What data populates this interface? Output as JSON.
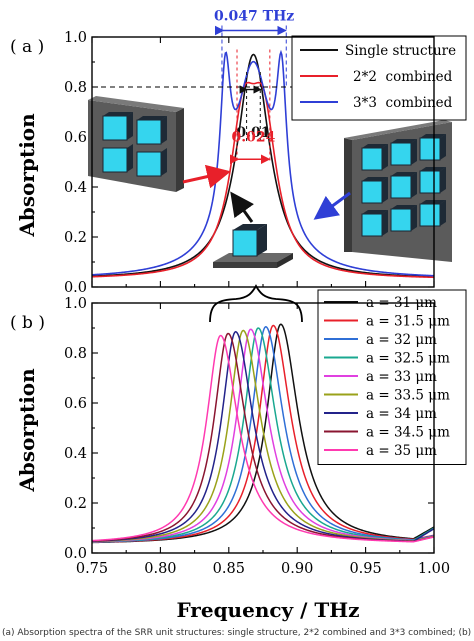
{
  "caption_fragment": "(a) Absorption spectra of the SRR unit structures: single structure, 2*2 combined and 3*3 combined; (b) spectra for different side lengths a",
  "colors": {
    "black": "#111111",
    "red": "#e8202a",
    "blue": "#2f3fd6",
    "cube_face": "#35d5ee",
    "plate": "#5a5a5a"
  },
  "chart_data": [
    {
      "panel_label": "( a )",
      "type": "line",
      "ylabel": "Absorption",
      "xlabel": "",
      "xlim": [
        0.75,
        1.0
      ],
      "ylim": [
        0.0,
        1.0
      ],
      "yticks": [
        0.0,
        0.2,
        0.4,
        0.6,
        0.8,
        1.0
      ],
      "ytick_labels": [
        "0.0",
        "0.2",
        "0.4",
        "0.6",
        "0.8",
        "1.0"
      ],
      "grid": false,
      "legend_position": "top-right",
      "reference_line_y": 0.8,
      "series": [
        {
          "name": "Single structure",
          "color": "#111111",
          "shape": "lorentz",
          "peaks": [
            {
              "x0": 0.868,
              "amp": 0.9,
              "w": 0.0145
            }
          ]
        },
        {
          "name": "2*2  combined",
          "color": "#e8202a",
          "shape": "lorentz",
          "peaks": [
            {
              "x0": 0.8605,
              "amp": 0.55,
              "w": 0.0118
            },
            {
              "x0": 0.8755,
              "amp": 0.55,
              "w": 0.0118
            }
          ]
        },
        {
          "name": "3*3  combined",
          "color": "#2f3fd6",
          "shape": "lorentz",
          "peaks": [
            {
              "x0": 0.8475,
              "amp": 0.56,
              "w": 0.0045
            },
            {
              "x0": 0.868,
              "amp": 0.82,
              "w": 0.0172
            },
            {
              "x0": 0.8885,
              "amp": 0.56,
              "w": 0.0045
            }
          ]
        }
      ],
      "annotations": [
        {
          "text": "0.047 THz",
          "color": "#2f3fd6",
          "x_from": 0.845,
          "x_to": 0.892,
          "y": 1.03
        },
        {
          "text": "0.01",
          "color": "#111111",
          "x_from": 0.863,
          "x_to": 0.873,
          "y": 0.6
        },
        {
          "text": "0.024",
          "color": "#e8202a",
          "x_from": 0.856,
          "x_to": 0.88,
          "y": 0.535
        }
      ]
    },
    {
      "panel_label": "( b )",
      "type": "line",
      "ylabel": "Absorption",
      "xlabel": "Frequency / THz",
      "xlim": [
        0.75,
        1.0
      ],
      "ylim": [
        0.0,
        1.0
      ],
      "xticks": [
        0.75,
        0.8,
        0.85,
        0.9,
        0.95,
        1.0
      ],
      "xtick_labels": [
        "0.75",
        "0.80",
        "0.85",
        "0.90",
        "0.95",
        "1.00"
      ],
      "yticks": [
        0.0,
        0.2,
        0.4,
        0.6,
        0.8,
        1.0
      ],
      "ytick_labels": [
        "0.0",
        "0.2",
        "0.4",
        "0.6",
        "0.8",
        "1.0"
      ],
      "grid": false,
      "legend_position": "top-right",
      "series": [
        {
          "name": "a = 31 μm",
          "color": "#111111",
          "peak_x": 0.888,
          "peak_y": 0.915
        },
        {
          "name": "a = 31.5 μm",
          "color": "#e8202a",
          "peak_x": 0.8825,
          "peak_y": 0.91
        },
        {
          "name": "a = 32 μm",
          "color": "#2f6fd6",
          "peak_x": 0.877,
          "peak_y": 0.905
        },
        {
          "name": "a = 32.5 μm",
          "color": "#1aa890",
          "peak_x": 0.8715,
          "peak_y": 0.9
        },
        {
          "name": "a = 33 μm",
          "color": "#e040e0",
          "peak_x": 0.866,
          "peak_y": 0.895
        },
        {
          "name": "a = 33.5 μm",
          "color": "#9aa21a",
          "peak_x": 0.8605,
          "peak_y": 0.89
        },
        {
          "name": "a = 34 μm",
          "color": "#23238a",
          "peak_x": 0.855,
          "peak_y": 0.885
        },
        {
          "name": "a = 34.5 μm",
          "color": "#8a1530",
          "peak_x": 0.8495,
          "peak_y": 0.878
        },
        {
          "name": "a = 35 μm",
          "color": "#ff3ab0",
          "peak_x": 0.844,
          "peak_y": 0.87
        }
      ]
    }
  ]
}
